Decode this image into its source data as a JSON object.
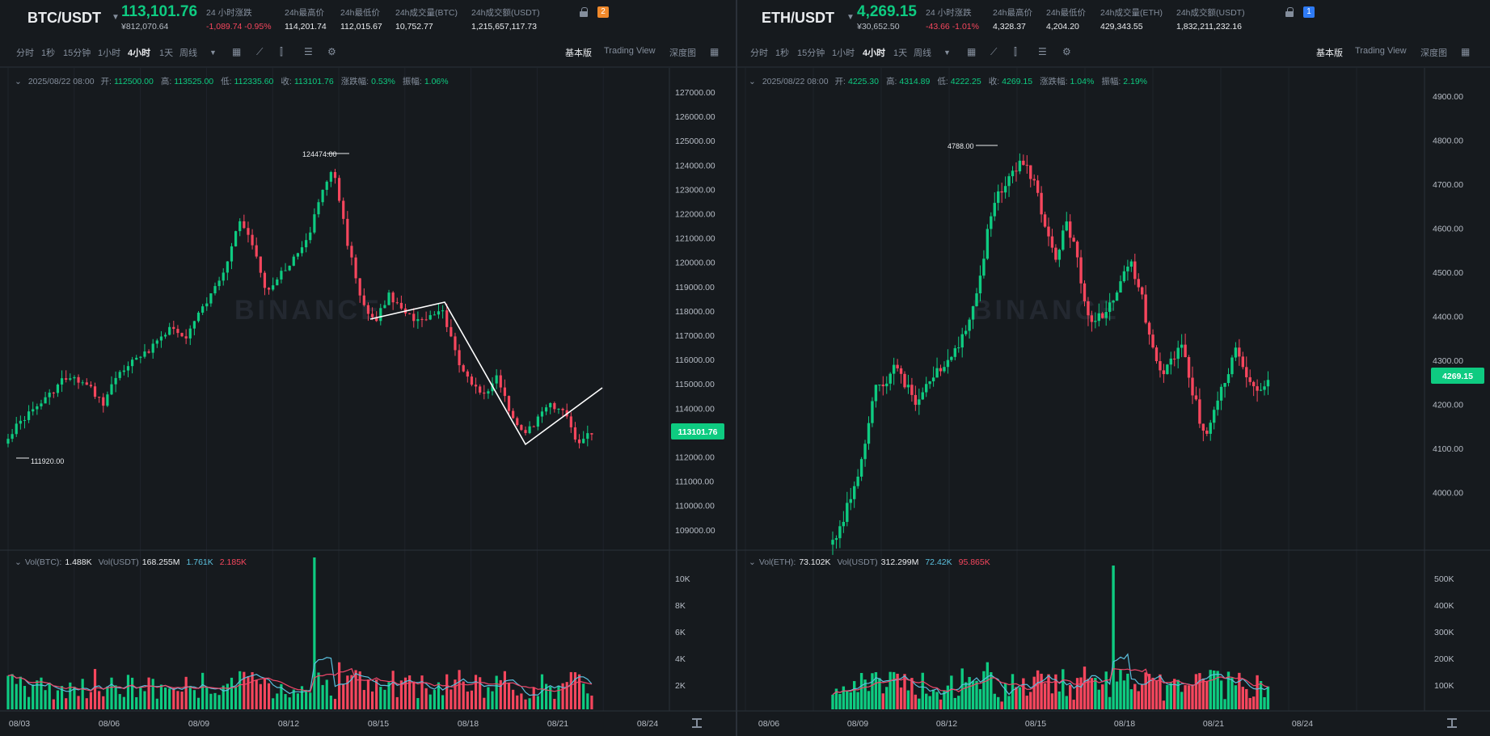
{
  "colors": {
    "up": "#0ecb81",
    "down": "#f6465d",
    "bg": "#161a1e",
    "grid": "#1f242b",
    "text": "#b7bdc6",
    "ma7": "#f0476a",
    "ma25": "#5bc0de",
    "trendline": "#ffffff",
    "badge_btc": "#f0892b",
    "badge_eth": "#2e7bf6"
  },
  "watermark": "BINANCE",
  "toolbar": {
    "intervals": [
      "分时",
      "1秒",
      "15分钟",
      "1小时",
      "4小时",
      "1天",
      "周线"
    ],
    "active_interval": "4小时",
    "views": [
      "基本版",
      "Trading View",
      "深度图"
    ],
    "active_view": "基本版"
  },
  "btc": {
    "pair": "BTC/USDT",
    "last_price": "113,101.76",
    "cny_price": "¥812,070.64",
    "badge": "2",
    "stats": [
      {
        "label": "24 小时涨跌",
        "value": "-1,089.74 -0.95%",
        "negative": true
      },
      {
        "label": "24h最高价",
        "value": "114,201.74"
      },
      {
        "label": "24h最低价",
        "value": "112,015.67"
      },
      {
        "label": "24h成交量(BTC)",
        "value": "10,752.77"
      },
      {
        "label": "24h成交额(USDT)",
        "value": "1,215,657,117.73"
      }
    ],
    "ohlc": {
      "date": "2025/08/22 08:00",
      "open_label": "开:",
      "open": "112500.00",
      "high_label": "高:",
      "high": "113525.00",
      "low_label": "低:",
      "low": "112335.60",
      "close_label": "收:",
      "close": "113101.76",
      "chg_label": "涨跌幅:",
      "chg": "0.53%",
      "amp_label": "振幅:",
      "amp": "1.06%"
    },
    "vol": {
      "label": "Vol(BTC):",
      "value": "1.488K",
      "label2": "Vol(USDT)",
      "value2": "168.255M",
      "ma1": "1.761K",
      "ma2": "2.185K"
    },
    "price_axis": [
      "127000.00",
      "126000.00",
      "125000.00",
      "124000.00",
      "123000.00",
      "122000.00",
      "121000.00",
      "120000.00",
      "119000.00",
      "118000.00",
      "117000.00",
      "116000.00",
      "115000.00",
      "114000.00",
      "113000.00",
      "112000.00",
      "111000.00",
      "110000.00",
      "109000.00"
    ],
    "current_price_tag": "113101.76",
    "vol_axis": [
      "10K",
      "8K",
      "6K",
      "4K",
      "2K"
    ],
    "date_axis": [
      "08/03",
      "08/06",
      "08/09",
      "08/12",
      "08/15",
      "08/18",
      "08/21",
      "08/24"
    ],
    "high_marker": "124474.00",
    "low_marker": "111920.00"
  },
  "eth": {
    "pair": "ETH/USDT",
    "last_price": "4,269.15",
    "cny_price": "¥30,652.50",
    "badge": "1",
    "stats": [
      {
        "label": "24 小时涨跌",
        "value": "-43.66 -1.01%",
        "negative": true
      },
      {
        "label": "24h最高价",
        "value": "4,328.37"
      },
      {
        "label": "24h最低价",
        "value": "4,204.20"
      },
      {
        "label": "24h成交量(ETH)",
        "value": "429,343.55"
      },
      {
        "label": "24h成交额(USDT)",
        "value": "1,832,211,232.16"
      }
    ],
    "ohlc": {
      "date": "2025/08/22 08:00",
      "open_label": "开:",
      "open": "4225.30",
      "high_label": "高:",
      "high": "4314.89",
      "low_label": "低:",
      "low": "4222.25",
      "close_label": "收:",
      "close": "4269.15",
      "chg_label": "涨跌幅:",
      "chg": "1.04%",
      "amp_label": "振幅:",
      "amp": "2.19%"
    },
    "vol": {
      "label": "Vol(ETH):",
      "value": "73.102K",
      "label2": "Vol(USDT)",
      "value2": "312.299M",
      "ma1": "72.42K",
      "ma2": "95.865K"
    },
    "price_axis": [
      "4900.00",
      "4800.00",
      "4700.00",
      "4600.00",
      "4500.00",
      "4400.00",
      "4300.00",
      "4200.00",
      "4100.00",
      "4000.00"
    ],
    "current_price_tag": "4269.15",
    "vol_axis": [
      "500K",
      "400K",
      "300K",
      "200K",
      "100K"
    ],
    "date_axis": [
      "08/06",
      "08/09",
      "08/12",
      "08/15",
      "08/18",
      "08/21",
      "08/24"
    ],
    "high_marker": "4788.00"
  }
}
